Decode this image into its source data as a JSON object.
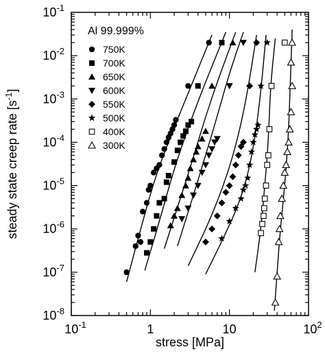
{
  "chart_data": {
    "type": "scatter",
    "title": "",
    "annotation": "Al 99.999%",
    "xlabel": "stress [MPa]",
    "ylabel": "steady state creep rate [s",
    "ylabel_unit_sup": "-1",
    "ylabel_close": "]",
    "x_scale": "log",
    "y_scale": "log",
    "xlim": [
      0.1,
      100
    ],
    "ylim": [
      1e-08,
      0.1
    ],
    "x_ticks": [
      {
        "value": 0.1,
        "base": "10",
        "exp": "-1"
      },
      {
        "value": 1,
        "text": "1"
      },
      {
        "value": 10,
        "text": "10"
      },
      {
        "value": 100,
        "base": "10",
        "exp": "2"
      }
    ],
    "y_ticks": [
      {
        "value": 1e-08,
        "base": "10",
        "exp": "-8"
      },
      {
        "value": 1e-07,
        "base": "10",
        "exp": "-7"
      },
      {
        "value": 1e-06,
        "base": "10",
        "exp": "-6"
      },
      {
        "value": 1e-05,
        "base": "10",
        "exp": "-5"
      },
      {
        "value": 0.0001,
        "base": "10",
        "exp": "-4"
      },
      {
        "value": 0.001,
        "base": "10",
        "exp": "-3"
      },
      {
        "value": 0.01,
        "base": "10",
        "exp": "-2"
      },
      {
        "value": 0.1,
        "base": "10",
        "exp": "-1"
      }
    ],
    "grid": false,
    "legend_position": "top-left",
    "series": [
      {
        "name": "750K",
        "marker": "circle",
        "points": [
          [
            0.5,
            1e-07
          ],
          [
            0.65,
            4e-07
          ],
          [
            0.7,
            7e-07
          ],
          [
            0.75,
            5e-07
          ],
          [
            0.8,
            2.5e-06
          ],
          [
            0.9,
            4e-06
          ],
          [
            0.95,
            8e-06
          ],
          [
            1.0,
            1e-05
          ],
          [
            1.1,
            2e-05
          ],
          [
            1.2,
            2.5e-05
          ],
          [
            1.3,
            3e-05
          ],
          [
            1.4,
            5e-05
          ],
          [
            1.5,
            7e-05
          ],
          [
            1.6,
            0.0001
          ],
          [
            1.7,
            0.00013
          ],
          [
            1.8,
            0.00016
          ],
          [
            1.9,
            0.0002
          ],
          [
            2.0,
            0.00025
          ],
          [
            2.1,
            0.00033
          ],
          [
            3.0,
            0.002
          ],
          [
            5.5,
            0.02
          ]
        ],
        "fit": [
          [
            0.5,
            6e-08
          ],
          [
            0.8,
            1.5e-06
          ],
          [
            1.2,
            2e-05
          ],
          [
            2.0,
            0.00022
          ],
          [
            3.2,
            0.0018
          ],
          [
            6.0,
            0.03
          ]
        ]
      },
      {
        "name": "700K",
        "marker": "square",
        "points": [
          [
            0.9,
            2.8e-07
          ],
          [
            1.0,
            5e-07
          ],
          [
            1.1,
            1e-06
          ],
          [
            1.2,
            2e-06
          ],
          [
            1.3,
            4e-06
          ],
          [
            1.5,
            5e-06
          ],
          [
            1.6,
            1.2e-05
          ],
          [
            1.7,
            1.7e-05
          ],
          [
            2.0,
            3.5e-05
          ],
          [
            2.2,
            6.5e-05
          ],
          [
            2.4,
            0.0001
          ],
          [
            2.6,
            0.00014
          ],
          [
            2.8,
            0.00018
          ],
          [
            3.0,
            0.00025
          ],
          [
            3.3,
            0.0003
          ],
          [
            4.0,
            0.002
          ],
          [
            8.0,
            0.02
          ]
        ],
        "fit": [
          [
            0.85,
            1.1e-07
          ],
          [
            1.3,
            1.5e-06
          ],
          [
            2.0,
            2.5e-05
          ],
          [
            3.2,
            0.0003
          ],
          [
            5.0,
            0.0025
          ],
          [
            9.0,
            0.035
          ]
        ]
      },
      {
        "name": "650K",
        "marker": "triangle-up",
        "points": [
          [
            1.8,
            1.2e-06
          ],
          [
            2.0,
            2e-06
          ],
          [
            2.2,
            3e-06
          ],
          [
            2.5,
            6e-06
          ],
          [
            2.8,
            1e-05
          ],
          [
            3.0,
            1.5e-05
          ],
          [
            3.2,
            2.5e-05
          ],
          [
            3.5,
            4e-05
          ],
          [
            3.8,
            6e-05
          ],
          [
            4.0,
            8e-05
          ],
          [
            4.5,
            0.00012
          ],
          [
            5.0,
            0.00018
          ],
          [
            6.0,
            0.002
          ],
          [
            11.0,
            0.02
          ]
        ],
        "fit": [
          [
            1.5,
            3.5e-07
          ],
          [
            2.3,
            4e-06
          ],
          [
            3.5,
            4.5e-05
          ],
          [
            5.0,
            0.0004
          ],
          [
            7.5,
            0.0035
          ],
          [
            12.0,
            0.035
          ]
        ]
      },
      {
        "name": "600K",
        "marker": "triangle-down",
        "points": [
          [
            2.5,
            1.7e-06
          ],
          [
            3.0,
            3e-06
          ],
          [
            3.5,
            6e-06
          ],
          [
            4.0,
            1e-05
          ],
          [
            4.5,
            2e-05
          ],
          [
            5.0,
            3e-05
          ],
          [
            5.5,
            5e-05
          ],
          [
            6.0,
            7e-05
          ],
          [
            6.5,
            0.0001
          ],
          [
            7.0,
            0.00012
          ],
          [
            10.0,
            0.002
          ],
          [
            15.0,
            0.02
          ]
        ],
        "fit": [
          [
            2.2,
            4e-07
          ],
          [
            3.5,
            6e-06
          ],
          [
            5.0,
            5e-05
          ],
          [
            7.0,
            0.0004
          ],
          [
            10.0,
            0.004
          ],
          [
            15.0,
            0.035
          ]
        ]
      },
      {
        "name": "550K",
        "marker": "diamond",
        "points": [
          [
            5.0,
            5e-07
          ],
          [
            6.0,
            1e-06
          ],
          [
            7.0,
            2e-06
          ],
          [
            8.0,
            4e-06
          ],
          [
            9.0,
            7e-06
          ],
          [
            10.0,
            1e-05
          ],
          [
            11.0,
            1.6e-05
          ],
          [
            12.0,
            3e-05
          ],
          [
            13.0,
            5e-05
          ],
          [
            14.0,
            8e-05
          ],
          [
            15.0,
            0.0001
          ],
          [
            18.0,
            0.002
          ],
          [
            22.0,
            0.02
          ]
        ],
        "fit": [
          [
            3.0,
            1.4e-07
          ],
          [
            5.5,
            1.4e-06
          ],
          [
            9.0,
            1.4e-05
          ],
          [
            13.0,
            0.00014
          ],
          [
            17.0,
            0.0015
          ],
          [
            22.0,
            0.03
          ]
        ]
      },
      {
        "name": "500K",
        "marker": "star",
        "points": [
          [
            8.0,
            6e-07
          ],
          [
            10.0,
            1.5e-06
          ],
          [
            12.0,
            3e-06
          ],
          [
            14.0,
            5e-06
          ],
          [
            15.0,
            8e-06
          ],
          [
            16.0,
            1e-05
          ],
          [
            17.0,
            1.5e-05
          ],
          [
            18.0,
            3e-05
          ],
          [
            19.0,
            6e-05
          ],
          [
            20.0,
            0.0001
          ],
          [
            21.0,
            0.00015
          ],
          [
            22.0,
            0.0002
          ],
          [
            23.0,
            0.00025
          ],
          [
            25.0,
            0.002
          ],
          [
            30.0,
            0.02
          ]
        ],
        "fit": [
          [
            5.0,
            9e-08
          ],
          [
            9.0,
            8e-07
          ],
          [
            14.0,
            5e-06
          ],
          [
            19.0,
            4e-05
          ],
          [
            24.0,
            0.0007
          ],
          [
            29.0,
            0.03
          ]
        ]
      },
      {
        "name": "400K",
        "marker": "square-open",
        "points": [
          [
            25.0,
            8e-07
          ],
          [
            26.0,
            1.3e-06
          ],
          [
            27.0,
            2e-06
          ],
          [
            27.5,
            3e-06
          ],
          [
            28.0,
            5e-06
          ],
          [
            29.0,
            1e-05
          ],
          [
            30.0,
            3e-05
          ],
          [
            31.0,
            5e-05
          ],
          [
            32.0,
            0.0002
          ],
          [
            34.0,
            0.002
          ],
          [
            50.0,
            0.02
          ]
        ],
        "fit": [
          [
            21.0,
            1e-07
          ],
          [
            25.0,
            1e-06
          ],
          [
            28.0,
            1e-05
          ],
          [
            31.0,
            0.0001
          ],
          [
            33.0,
            0.002
          ],
          [
            38.0,
            0.025
          ]
        ]
      },
      {
        "name": "300K",
        "marker": "triangle-up-open",
        "points": [
          [
            38.0,
            2e-08
          ],
          [
            40.0,
            8e-08
          ],
          [
            42.0,
            5e-07
          ],
          [
            43.0,
            1e-06
          ],
          [
            44.0,
            2e-06
          ],
          [
            46.0,
            5e-06
          ],
          [
            48.0,
            1e-05
          ],
          [
            50.0,
            2e-05
          ],
          [
            52.0,
            3e-05
          ],
          [
            54.0,
            6e-05
          ],
          [
            56.0,
            0.0001
          ],
          [
            58.0,
            0.0002
          ],
          [
            60.0,
            0.0005
          ],
          [
            62.0,
            0.002
          ],
          [
            60.0,
            0.007
          ],
          [
            62.0,
            0.02
          ]
        ],
        "fit": [
          [
            37.0,
            1.3e-08
          ],
          [
            40.0,
            1e-07
          ],
          [
            44.0,
            1e-06
          ],
          [
            50.0,
            1e-05
          ],
          [
            55.0,
            0.0001
          ],
          [
            58.0,
            0.001
          ],
          [
            62.0,
            0.04
          ]
        ]
      }
    ]
  }
}
